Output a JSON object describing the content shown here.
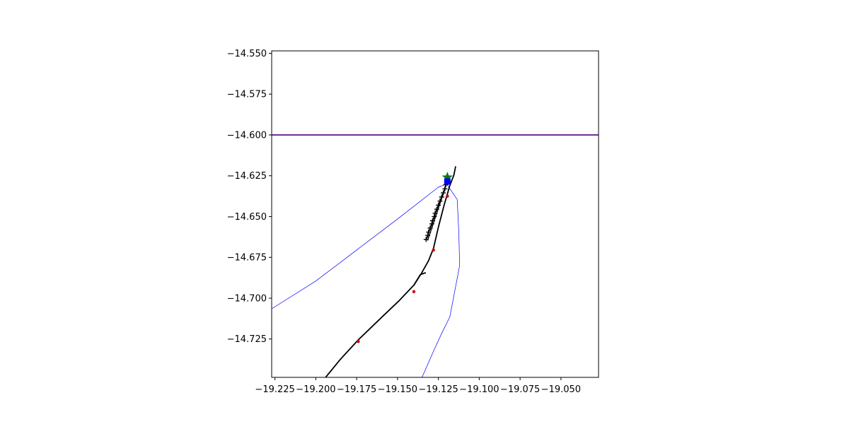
{
  "chart_data": {
    "type": "line",
    "title": "",
    "xlabel": "",
    "ylabel": "",
    "xlim": [
      -19.227,
      -19.027
    ],
    "ylim": [
      -14.7485,
      -14.5485
    ],
    "x_ticks": [
      -19.225,
      -19.2,
      -19.175,
      -19.15,
      -19.125,
      -19.1,
      -19.075,
      -19.05
    ],
    "x_tick_labels": [
      "−19.225",
      "−19.200",
      "−19.175",
      "−19.150",
      "−19.125",
      "−19.100",
      "−19.075",
      "−19.050"
    ],
    "y_ticks": [
      -14.55,
      -14.575,
      -14.6,
      -14.625,
      -14.65,
      -14.675,
      -14.7,
      -14.725
    ],
    "y_tick_labels": [
      "−14.550",
      "−14.575",
      "−14.600",
      "−14.625",
      "−14.650",
      "−14.675",
      "−14.700",
      "−14.725"
    ],
    "grid": false,
    "series": [
      {
        "kind": "hline",
        "color": "#4b0082",
        "y": -14.6
      },
      {
        "kind": "line",
        "color": "#0000ff",
        "width": 0.7,
        "points": [
          [
            -19.227,
            -14.7065
          ],
          [
            -19.2,
            -14.6895
          ],
          [
            -19.175,
            -14.6705
          ],
          [
            -19.15,
            -14.6515
          ],
          [
            -19.125,
            -14.632
          ],
          [
            -19.12,
            -14.63
          ],
          [
            -19.1135,
            -14.6395
          ],
          [
            -19.1125,
            -14.6595
          ],
          [
            -19.112,
            -14.68
          ],
          [
            -19.118,
            -14.7115
          ],
          [
            -19.1225,
            -14.7205
          ],
          [
            -19.128,
            -14.7325
          ],
          [
            -19.135,
            -14.7485
          ]
        ]
      },
      {
        "kind": "line",
        "color": "#000000",
        "width": 1.8,
        "points": [
          [
            -19.194,
            -14.7485
          ],
          [
            -19.185,
            -14.7375
          ],
          [
            -19.174,
            -14.7255
          ],
          [
            -19.16,
            -14.712
          ],
          [
            -19.149,
            -14.7015
          ],
          [
            -19.14,
            -14.692
          ],
          [
            -19.136,
            -14.6855
          ],
          [
            -19.133,
            -14.6845
          ]
        ]
      },
      {
        "kind": "line",
        "color": "#000000",
        "width": 1.8,
        "points": [
          [
            -19.14,
            -14.692
          ],
          [
            -19.1355,
            -14.685
          ],
          [
            -19.131,
            -14.677
          ],
          [
            -19.128,
            -14.6695
          ],
          [
            -19.125,
            -14.6565
          ],
          [
            -19.1215,
            -14.643
          ],
          [
            -19.118,
            -14.631
          ],
          [
            -19.1155,
            -14.6245
          ],
          [
            -19.1145,
            -14.6195
          ]
        ]
      },
      {
        "kind": "markers",
        "color": "#cc0000",
        "marker": "dot",
        "points": [
          [
            -19.174,
            -14.7265
          ],
          [
            -19.14,
            -14.696
          ],
          [
            -19.128,
            -14.6705
          ],
          [
            -19.1195,
            -14.6375
          ]
        ]
      },
      {
        "kind": "line",
        "color": "#000000",
        "width": 1.6,
        "marker": "plus",
        "points": [
          [
            -19.1325,
            -14.664
          ],
          [
            -19.1315,
            -14.6615
          ],
          [
            -19.131,
            -14.6595
          ],
          [
            -19.13,
            -14.657
          ],
          [
            -19.129,
            -14.6545
          ],
          [
            -19.1285,
            -14.6525
          ],
          [
            -19.1275,
            -14.65
          ],
          [
            -19.127,
            -14.648
          ],
          [
            -19.126,
            -14.6455
          ],
          [
            -19.125,
            -14.643
          ],
          [
            -19.124,
            -14.6405
          ],
          [
            -19.123,
            -14.638
          ],
          [
            -19.122,
            -14.6355
          ],
          [
            -19.121,
            -14.633
          ],
          [
            -19.1205,
            -14.6305
          ]
        ]
      },
      {
        "kind": "line",
        "color": "#000000",
        "width": 1.2,
        "points": [
          [
            -19.1315,
            -14.6645
          ],
          [
            -19.12,
            -14.63
          ]
        ]
      },
      {
        "kind": "markers",
        "color": "#008000",
        "marker": "star",
        "points": [
          [
            -19.1195,
            -14.626
          ]
        ]
      },
      {
        "kind": "markers",
        "color": "#0000ff",
        "marker": "square",
        "points": [
          [
            -19.1195,
            -14.6285
          ]
        ]
      }
    ]
  }
}
